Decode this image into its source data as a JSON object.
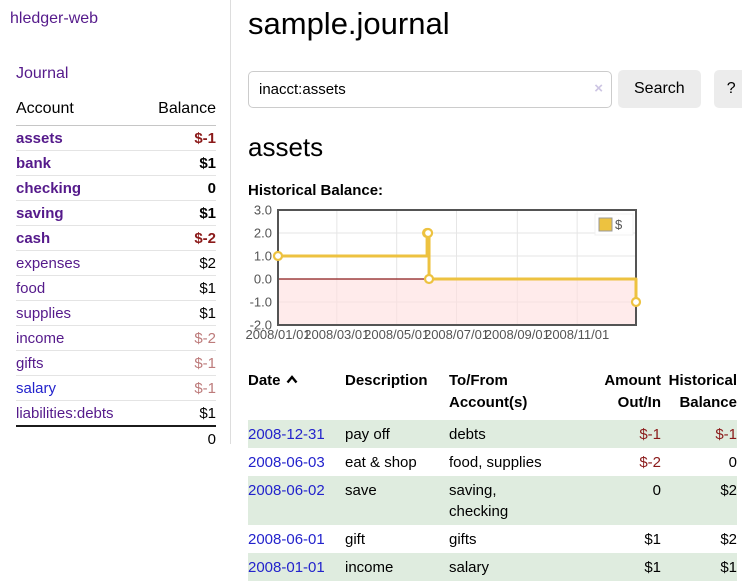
{
  "sidebar": {
    "app_title": "hledger-web",
    "journal_label": "Journal",
    "accounts_table": {
      "account_header": "Account",
      "balance_header": "Balance",
      "rows": [
        {
          "name": "assets",
          "indent": 1,
          "bold": true,
          "link_color": "purple",
          "balance": "$-1",
          "balance_style": "neg-strong"
        },
        {
          "name": "bank",
          "indent": 2,
          "bold": true,
          "link_color": "purple",
          "balance": "$1",
          "balance_style": "pos"
        },
        {
          "name": "checking",
          "indent": 3,
          "bold": true,
          "link_color": "purple",
          "balance": "0",
          "balance_style": "pos"
        },
        {
          "name": "saving",
          "indent": 3,
          "bold": true,
          "link_color": "purple",
          "balance": "$1",
          "balance_style": "pos"
        },
        {
          "name": "cash",
          "indent": 2,
          "bold": true,
          "link_color": "purple",
          "balance": "$-2",
          "balance_style": "neg-strong"
        },
        {
          "name": "expenses",
          "indent": 1,
          "bold": false,
          "link_color": "purple",
          "balance": "$2",
          "balance_style": "pos"
        },
        {
          "name": "food",
          "indent": 2,
          "bold": false,
          "link_color": "purple",
          "balance": "$1",
          "balance_style": "pos"
        },
        {
          "name": "supplies",
          "indent": 2,
          "bold": false,
          "link_color": "purple",
          "balance": "$1",
          "balance_style": "pos"
        },
        {
          "name": "income",
          "indent": 1,
          "bold": false,
          "link_color": "purple",
          "balance": "$-2",
          "balance_style": "neg-soft"
        },
        {
          "name": "gifts",
          "indent": 2,
          "bold": false,
          "link_color": "purple",
          "balance": "$-1",
          "balance_style": "neg-soft"
        },
        {
          "name": "salary",
          "indent": 2,
          "bold": false,
          "link_color": "blue",
          "balance": "$-1",
          "balance_style": "neg-soft"
        },
        {
          "name": "liabilities:debts",
          "indent": 1,
          "bold": false,
          "link_color": "purple",
          "balance": "$1",
          "balance_style": "pos"
        }
      ],
      "total": "0"
    }
  },
  "header": {
    "title": "sample.journal"
  },
  "search": {
    "query": "inacct:assets",
    "clear_icon": "×",
    "button_label": "Search",
    "help_label": "?"
  },
  "account_view": {
    "heading": "assets",
    "chart_label": "Historical Balance:"
  },
  "chart_data": {
    "type": "line",
    "style": "step",
    "title": "Historical Balance",
    "series": [
      {
        "name": "$",
        "color": "#edc240",
        "points": [
          [
            "2008-01-01",
            1
          ],
          [
            "2008-06-01",
            2
          ],
          [
            "2008-06-02",
            2
          ],
          [
            "2008-06-03",
            0
          ],
          [
            "2008-12-31",
            -1
          ]
        ]
      }
    ],
    "x_range": [
      "2008-01-01",
      "2008-12-31"
    ],
    "x_ticks": [
      "2008/01/01",
      "2008/03/01",
      "2008/05/01",
      "2008/07/01",
      "2008/09/01",
      "2008/11/01"
    ],
    "y_ticks": [
      "3.0",
      "2.0",
      "1.0",
      "0.0",
      "-1.0",
      "-2.0"
    ],
    "ylim": [
      -2,
      3
    ],
    "grid": true,
    "legend_position": "top-right",
    "legend_label": "$",
    "negative_region_color": "#ffdddd",
    "zero_line_color": "#8b1a1a",
    "border_color": "#545454",
    "axis_text_color": "#545454"
  },
  "transactions": {
    "headers": {
      "date": "Date",
      "description": "Description",
      "tofrom": "To/From\nAccount(s)",
      "amount": "Amount\nOut/In",
      "balance": "Historical\nBalance"
    },
    "rows": [
      {
        "date": "2008-12-31",
        "description": "pay off",
        "accounts": "debts",
        "amount": "$-1",
        "amount_neg": true,
        "balance": "$-1",
        "balance_neg": true,
        "shaded": true
      },
      {
        "date": "2008-06-03",
        "description": "eat & shop",
        "accounts": "food, supplies",
        "amount": "$-2",
        "amount_neg": true,
        "balance": "0",
        "balance_neg": false,
        "shaded": false
      },
      {
        "date": "2008-06-02",
        "description": "save",
        "accounts": "saving,\nchecking",
        "amount": "0",
        "amount_neg": false,
        "balance": "$2",
        "balance_neg": false,
        "shaded": true
      },
      {
        "date": "2008-06-01",
        "description": "gift",
        "accounts": "gifts",
        "amount": "$1",
        "amount_neg": false,
        "balance": "$2",
        "balance_neg": false,
        "shaded": false
      },
      {
        "date": "2008-01-01",
        "description": "income",
        "accounts": "salary",
        "amount": "$1",
        "amount_neg": false,
        "balance": "$1",
        "balance_neg": false,
        "shaded": true
      }
    ]
  },
  "colors": {
    "link_purple": "#551a8b",
    "link_blue": "#2323cc",
    "negative_strong": "#8b1a1a",
    "negative_soft": "#bd7b7b",
    "row_shade_green": "#dfecdf",
    "button_gray": "#ececec",
    "chart_line_gold": "#edc240"
  }
}
